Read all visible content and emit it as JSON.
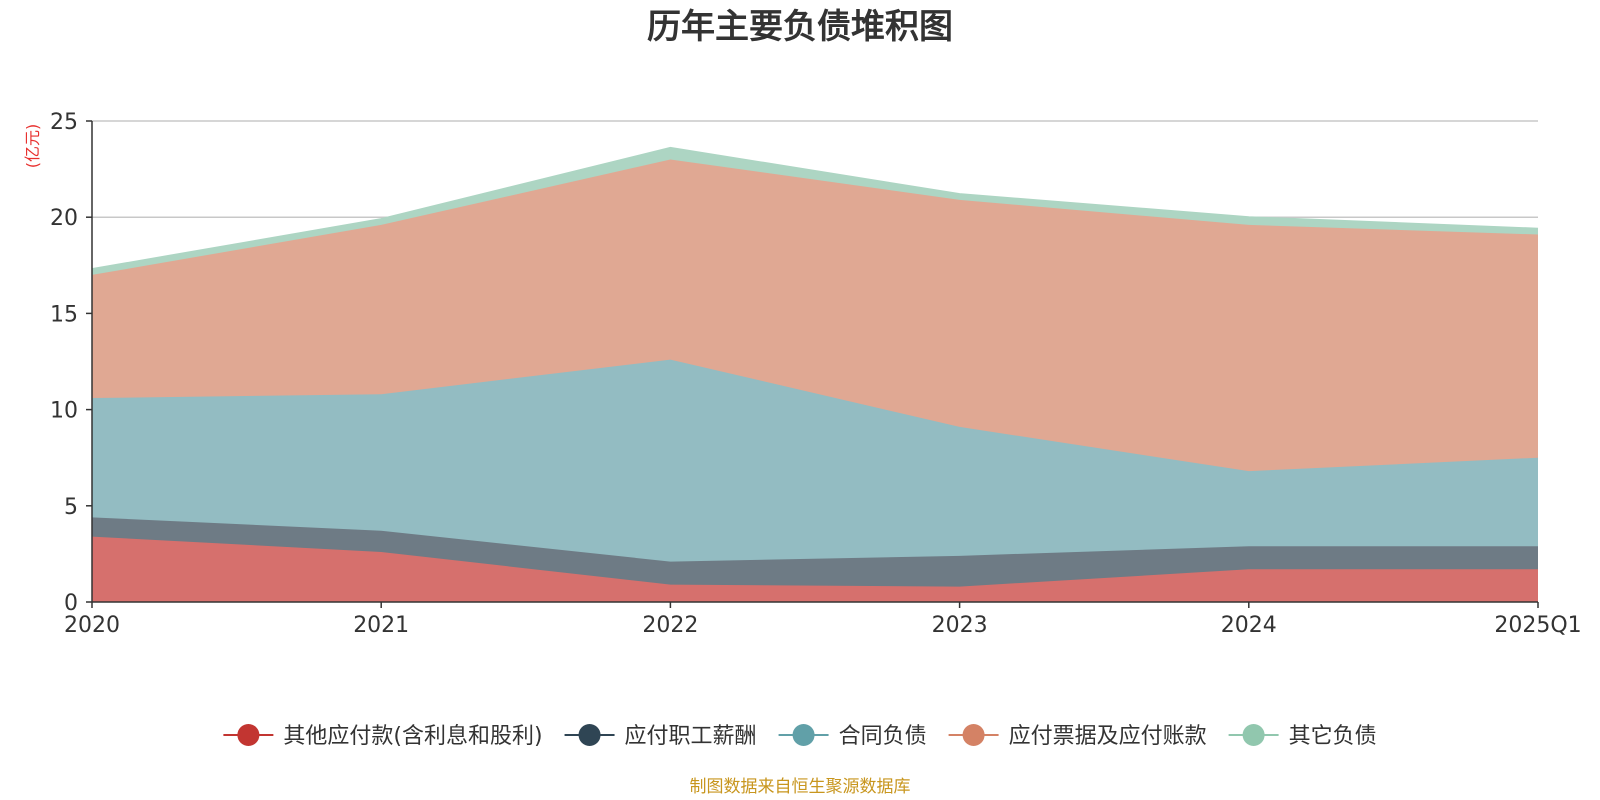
{
  "chart_data": {
    "type": "area",
    "stacked": true,
    "title": "历年主要负债堆积图",
    "ylabel": "(亿元)",
    "categories": [
      "2020",
      "2021",
      "2022",
      "2023",
      "2024",
      "2025Q1"
    ],
    "ylim": [
      0,
      25
    ],
    "yticks": [
      0,
      5,
      10,
      15,
      20,
      25
    ],
    "grid": true,
    "legend_position": "bottom",
    "series": [
      {
        "name": "其他应付款(含利息和股利)",
        "values": [
          3.4,
          2.6,
          0.9,
          0.8,
          1.7,
          1.7
        ],
        "color": "#c23531",
        "fill": "#d6706d"
      },
      {
        "name": "应付职工薪酬",
        "values": [
          1.0,
          1.1,
          1.2,
          1.6,
          1.2,
          1.2
        ],
        "color": "#2f4554",
        "fill": "#6e7b85"
      },
      {
        "name": "合同负债",
        "values": [
          6.2,
          7.1,
          10.5,
          6.7,
          3.9,
          4.6
        ],
        "color": "#61a0a8",
        "fill": "#93bcc2"
      },
      {
        "name": "应付票据及应付账款",
        "values": [
          6.4,
          8.8,
          10.4,
          11.8,
          12.8,
          11.6
        ],
        "color": "#d48265",
        "fill": "#e0a893"
      },
      {
        "name": "其它负债",
        "values": [
          0.3,
          0.3,
          0.6,
          0.3,
          0.4,
          0.3
        ],
        "color": "#91c7ae",
        "fill": "#add5c3"
      }
    ]
  },
  "source_text": "制图数据来自恒生聚源数据库"
}
